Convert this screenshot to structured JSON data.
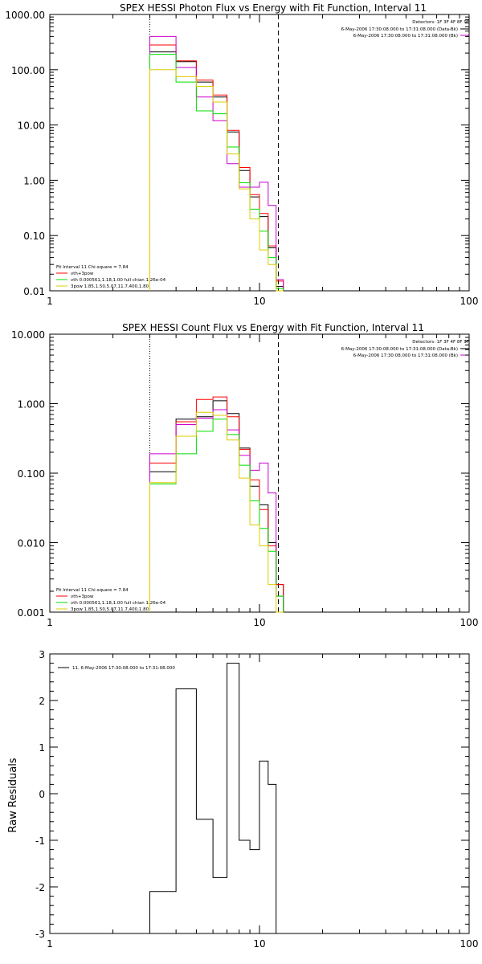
{
  "colors": {
    "black": "#000000",
    "red": "#ff0000",
    "magenta": "#cc00cc",
    "green": "#00dd00",
    "yellow": "#ddcc00"
  },
  "chart_data": [
    {
      "type": "line",
      "title": "SPEX HESSI Photon Flux vs Energy with Fit Function, Interval 11",
      "xscale": "log",
      "yscale": "log",
      "xlim": [
        1,
        100
      ],
      "ylim": [
        0.01,
        1000
      ],
      "xticks": [
        "1",
        "10",
        "100"
      ],
      "yticks": [
        "0.01",
        "0.10",
        "1.00",
        "10.00",
        "100.00",
        "1000.00"
      ],
      "vlines": [
        {
          "x": 3.0,
          "style": "dotted"
        },
        {
          "x": 12.3,
          "style": "dashed"
        }
      ],
      "legend_top": [
        "Detectors: 1F 3F 4F 8F 9F",
        "6-May-2006 17:30:08.000 to 17:31:08.000 (Data-Bk)",
        "6-May-2006 17:30:08.000 to 17:31:08.000 (Bk)"
      ],
      "legend_bottom": [
        "Fit Interval 11    Chi-square = 7.84",
        "vth+3pow",
        "vth 0.000561,1.18,1.00  full chian 1.26e-04",
        "3pow 1.85,1.50,5.07,11.7,400,1.80"
      ],
      "edges": [
        3.0,
        4.0,
        5.0,
        6.0,
        7.0,
        8.0,
        9.0,
        10.0,
        11.0,
        12.0,
        13.0
      ],
      "series": [
        {
          "color": "black",
          "values": [
            210,
            140,
            60,
            32,
            7.5,
            1.5,
            0.5,
            0.22,
            0.06,
            0.012
          ]
        },
        {
          "color": "red",
          "values": [
            280,
            145,
            65,
            35,
            8.0,
            1.7,
            0.55,
            0.25,
            0.065,
            0.015
          ]
        },
        {
          "color": "magenta",
          "values": [
            400,
            110,
            32,
            12,
            2.0,
            0.75,
            0.75,
            0.92,
            0.35,
            0.016
          ]
        },
        {
          "color": "green",
          "values": [
            190,
            60,
            18,
            16,
            4.0,
            0.9,
            0.3,
            0.12,
            0.04,
            0.011
          ]
        },
        {
          "color": "yellow",
          "values": [
            100,
            75,
            50,
            26,
            3.0,
            0.7,
            0.2,
            0.055,
            0.03,
            0.008
          ]
        }
      ]
    },
    {
      "type": "line",
      "title": "SPEX HESSI Count Flux vs Energy with Fit Function, Interval 11",
      "xscale": "log",
      "yscale": "log",
      "xlim": [
        1,
        100
      ],
      "ylim": [
        0.001,
        10
      ],
      "xticks": [
        "1",
        "10",
        "100"
      ],
      "yticks": [
        "0.001",
        "0.010",
        "0.100",
        "1.000",
        "10.000"
      ],
      "vlines": [
        {
          "x": 3.0,
          "style": "dotted"
        },
        {
          "x": 12.3,
          "style": "dashed"
        }
      ],
      "legend_top": [
        "Detectors: 1F 3F 4F 8F 9F",
        "6-May-2006 17:30:08.000 to 17:31:08.000 (Data-Bk)",
        "6-May-2006 17:30:08.000 to 17:31:08.000 (Bk)"
      ],
      "legend_bottom": [
        "Fit Interval 11    Chi-square = 7.84",
        "vth+3pow",
        "vth 0.000561,1.18,1.00  full chian 1.26e-04",
        "3pow 1.85,1.50,5.07,11.7,400,1.80"
      ],
      "edges": [
        3.0,
        4.0,
        5.0,
        6.0,
        7.0,
        8.0,
        9.0,
        10.0,
        11.0,
        12.0,
        13.0
      ],
      "series": [
        {
          "color": "black",
          "values": [
            0.105,
            0.6,
            0.65,
            1.1,
            0.72,
            0.23,
            0.065,
            0.035,
            0.01,
            0.0025
          ]
        },
        {
          "color": "red",
          "values": [
            0.14,
            0.55,
            1.15,
            1.25,
            0.65,
            0.22,
            0.08,
            0.03,
            0.009,
            0.0025
          ]
        },
        {
          "color": "magenta",
          "values": [
            0.19,
            0.5,
            0.62,
            0.82,
            0.42,
            0.18,
            0.11,
            0.14,
            0.052,
            0.0017
          ]
        },
        {
          "color": "green",
          "values": [
            0.07,
            0.19,
            0.4,
            0.6,
            0.36,
            0.13,
            0.04,
            0.016,
            0.0075,
            0.0017
          ]
        },
        {
          "color": "yellow",
          "values": [
            0.073,
            0.34,
            0.75,
            0.68,
            0.3,
            0.085,
            0.018,
            0.009,
            0.0025,
            0.001
          ]
        }
      ]
    },
    {
      "type": "line",
      "title": "",
      "xscale": "log",
      "yscale": "linear",
      "xlim": [
        1,
        100
      ],
      "ylim": [
        -3,
        3
      ],
      "xticks": [
        "1",
        "10",
        "100"
      ],
      "yticks": [
        "-3",
        "-2",
        "-1",
        "0",
        "1",
        "2",
        "3"
      ],
      "ylabel": "Raw Residuals",
      "legend": "11.   6-May-2006 17:30:08.000 to 17:31:08.000",
      "edges": [
        3.0,
        4.0,
        5.0,
        6.0,
        7.0,
        8.0,
        9.0,
        10.0,
        11.0,
        12.0
      ],
      "values": [
        -2.1,
        2.25,
        -0.55,
        -1.8,
        2.8,
        -1.0,
        -1.2,
        0.7,
        0.2
      ]
    }
  ]
}
